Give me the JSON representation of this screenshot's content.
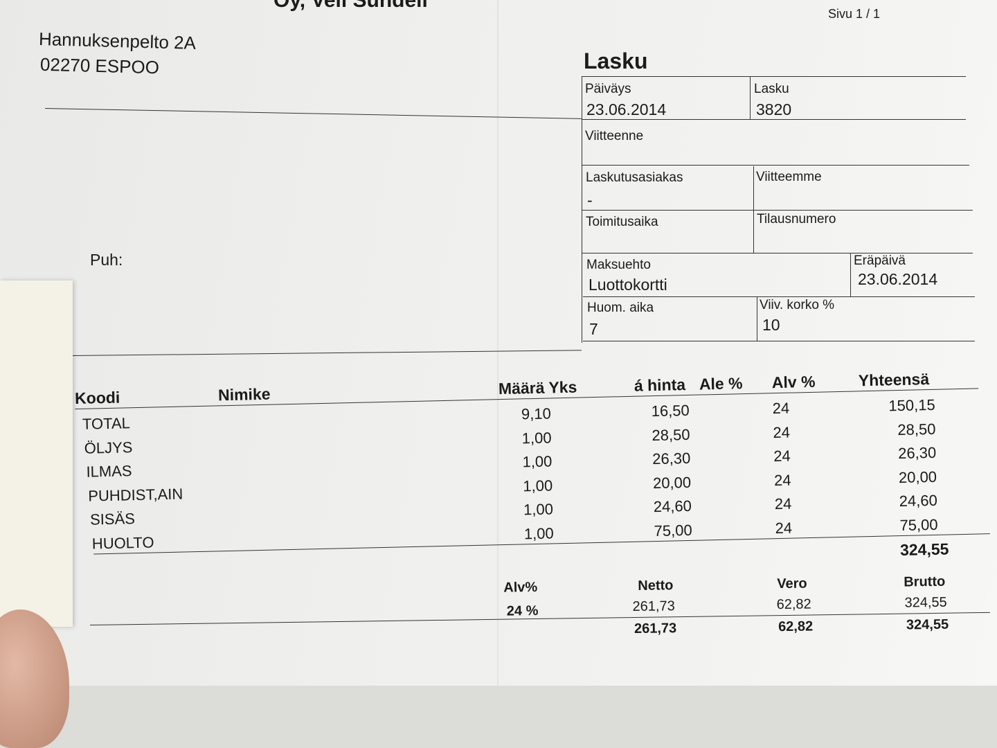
{
  "company": {
    "name_partial": "Oy, Veli Sundell",
    "address_line1": "Hannuksenpelto 2A",
    "address_line2": "02270 ESPOO",
    "phone_label": "Puh:"
  },
  "page": "Sivu 1 / 1",
  "invoice": {
    "title": "Lasku",
    "fields": {
      "date_label": "Päiväys",
      "date": "23.06.2014",
      "number_label": "Lasku",
      "number": "3820",
      "your_ref_label": "Viitteenne",
      "customer_label": "Laskutusasiakas",
      "customer": "-",
      "our_ref_label": "Viitteemme",
      "delivery_label": "Toimitusaika",
      "order_label": "Tilausnumero",
      "payment_label": "Maksuehto",
      "payment": "Luottokortti",
      "due_label": "Eräpäivä",
      "due": "23.06.2014",
      "notice_label": "Huom. aika",
      "notice": "7",
      "interest_label": "Viiv. korko %",
      "interest": "10"
    }
  },
  "table": {
    "headers": {
      "code": "Koodi",
      "name": "Nimike",
      "qty": "Määrä Yks",
      "price": "á hinta",
      "discount": "Ale %",
      "vat": "Alv %",
      "total": "Yhteensä"
    },
    "rows": [
      {
        "code": "TOTAL",
        "qty": "9,10",
        "price": "16,50",
        "vat": "24",
        "total": "150,15"
      },
      {
        "code": "ÖLJYS",
        "qty": "1,00",
        "price": "28,50",
        "vat": "24",
        "total": "28,50"
      },
      {
        "code": "ILMAS",
        "qty": "1,00",
        "price": "26,30",
        "vat": "24",
        "total": "26,30"
      },
      {
        "code": "PUHDIST,AIN",
        "qty": "1,00",
        "price": "20,00",
        "vat": "24",
        "total": "20,00"
      },
      {
        "code": "SISÄS",
        "qty": "1,00",
        "price": "24,60",
        "vat": "24",
        "total": "24,60"
      },
      {
        "code": "HUOLTO",
        "qty": "1,00",
        "price": "75,00",
        "vat": "24",
        "total": "75,00"
      }
    ],
    "grand_total": "324,55"
  },
  "vat_summary": {
    "headers": {
      "vat": "Alv%",
      "net": "Netto",
      "tax": "Vero",
      "gross": "Brutto"
    },
    "row": {
      "vat": "24 %",
      "net": "261,73",
      "tax": "62,82",
      "gross": "324,55"
    },
    "totals": {
      "net": "261,73",
      "tax": "62,82",
      "gross": "324,55"
    }
  }
}
